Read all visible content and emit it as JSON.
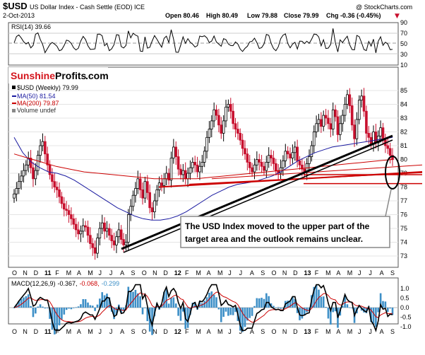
{
  "header": {
    "symbol": "$USD",
    "name": "US Dollar Index - Cash Settle (EOD) ICE",
    "date": "2-Oct-2013",
    "open": "Open 80.46",
    "high": "High 80.49",
    "low": "Low 79.88",
    "close": "Close 79.99",
    "chg": "Chg -0.36 (-0.45%)",
    "chg_arrow": "▼",
    "brand": "@ StockCharts.com"
  },
  "logo": {
    "part1": "Sunshine",
    "part2": "Profits",
    "part3": ".com"
  },
  "rsi": {
    "label": "RSI(14) 39.66",
    "ticks": [
      "90",
      "70",
      "50",
      "30",
      "10"
    ]
  },
  "price": {
    "legend": [
      "$USD (Weekly) 79.99",
      "MA(50) 81.54",
      "MA(200) 79.87",
      "Volume undef"
    ],
    "yticks": [
      "85",
      "84",
      "83",
      "82",
      "81",
      "80",
      "79",
      "78",
      "77",
      "76",
      "75",
      "74",
      "73"
    ]
  },
  "annotation": {
    "line1": "The USD Index moved to the upper part of the",
    "line2": "target area and the outlook remains unclear."
  },
  "macd": {
    "label_name": "MACD(12,26,9)",
    "label_v1": "-0.367,",
    "label_v2": "-0.068,",
    "label_v3": "-0.299",
    "yticks": [
      "1.0",
      "0.5",
      "0.0",
      "-0.5",
      "-1.0"
    ]
  },
  "xaxis": [
    "O",
    "N",
    "D",
    "11",
    "F",
    "M",
    "A",
    "M",
    "J",
    "J",
    "A",
    "S",
    "O",
    "N",
    "D",
    "12",
    "F",
    "M",
    "A",
    "M",
    "J",
    "J",
    "A",
    "S",
    "O",
    "N",
    "D",
    "13",
    "F",
    "M",
    "A",
    "M",
    "J",
    "J",
    "A",
    "S"
  ],
  "colors": {
    "up": "#000000",
    "down": "#c8102e",
    "ma50": "#1a1aa0",
    "ma200": "#cc0000",
    "hist": "#3d8fc7",
    "support": "#cc0000"
  },
  "chart_data": {
    "type": "candlestick",
    "title": "$USD US Dollar Index - Cash Settle (EOD) ICE",
    "timeframe": "Weekly",
    "x_range": [
      "Oct 2010",
      "Oct 2013"
    ],
    "y_range": [
      72.5,
      85.6
    ],
    "weekly_close": [
      77.5,
      77.9,
      78.4,
      78.8,
      79.2,
      79.6,
      80.1,
      79.4,
      78.6,
      79.2,
      80.3,
      81.0,
      81.3,
      80.4,
      79.6,
      78.9,
      78.4,
      78.0,
      77.8,
      77.3,
      76.8,
      76.4,
      76.3,
      76.0,
      75.7,
      75.3,
      74.9,
      74.6,
      74.8,
      75.2,
      75.1,
      74.5,
      73.9,
      73.6,
      73.2,
      74.3,
      75.0,
      75.4,
      74.8,
      75.0,
      74.5,
      74.1,
      73.8,
      74.4,
      74.9,
      74.2,
      73.8,
      74.0,
      76.0,
      76.6,
      77.4,
      77.9,
      78.6,
      77.8,
      77.2,
      78.4,
      77.6,
      76.5,
      76.2,
      77.0,
      77.8,
      78.3,
      78.1,
      78.6,
      79.0,
      78.5,
      80.1,
      80.9,
      80.2,
      79.3,
      78.9,
      79.2,
      78.6,
      79.0,
      79.4,
      79.8,
      79.6,
      79.1,
      79.5,
      79.8,
      80.6,
      81.6,
      82.2,
      82.8,
      83.6,
      83.2,
      82.5,
      81.9,
      82.8,
      83.8,
      84.0,
      83.5,
      82.6,
      82.2,
      81.9,
      81.4,
      80.8,
      80.4,
      79.8,
      79.4,
      79.1,
      79.6,
      80.0,
      79.8,
      79.5,
      79.2,
      79.8,
      80.3,
      80.1,
      79.7,
      79.2,
      79.0,
      79.4,
      79.9,
      80.6,
      80.4,
      80.1,
      80.5,
      80.9,
      79.9,
      79.6,
      79.3,
      79.1,
      79.7,
      80.2,
      81.0,
      82.0,
      82.6,
      82.9,
      82.4,
      83.2,
      83.0,
      82.6,
      82.2,
      83.6,
      83.1,
      81.8,
      82.6,
      83.2,
      84.0,
      84.7,
      83.9,
      82.5,
      81.5,
      82.9,
      84.3,
      84.6,
      83.5,
      81.9,
      81.6,
      81.1,
      82.0,
      81.2,
      81.7,
      82.3,
      81.4,
      81.0,
      80.8,
      80.3,
      79.99
    ],
    "ma50": [
      81.6,
      80.5,
      79.8,
      79.4,
      79.1,
      79.0,
      78.8,
      78.5,
      78.1,
      77.7,
      77.3,
      76.9,
      76.5,
      76.2,
      75.9,
      75.7,
      75.6,
      75.6,
      75.7,
      75.9,
      76.2,
      76.6,
      77.0,
      77.4,
      77.7,
      78.0,
      78.2,
      78.3,
      78.4,
      78.6,
      78.8,
      79.1,
      79.5,
      79.9,
      80.2,
      80.5,
      80.7,
      80.9,
      81.0,
      81.1,
      81.2,
      81.3,
      81.4,
      81.5,
      81.6
    ],
    "ma200": [
      80.4,
      80.1,
      79.8,
      79.5,
      79.3,
      79.1,
      79.0,
      78.9,
      78.8,
      78.7,
      78.6,
      78.6,
      78.6,
      78.6,
      78.7,
      78.8,
      78.9,
      79.0,
      79.1,
      79.2,
      79.3,
      79.4,
      79.5,
      79.6,
      79.7,
      79.8,
      79.9,
      80.0
    ],
    "trendlines": [
      {
        "name": "rising support",
        "from": [
          "Aug 2011",
          73.6
        ],
        "to": [
          "Sep 2013",
          81.6
        ]
      },
      {
        "name": "support lines",
        "values": [
          78.0,
          78.2,
          78.8,
          79.0
        ]
      }
    ],
    "rsi": {
      "label": "RSI(14)",
      "last": 39.66,
      "range": [
        10,
        90
      ]
    },
    "macd": {
      "params": "12,26,9",
      "macd": -0.367,
      "histogram": -0.068,
      "signal": -0.299,
      "range": [
        -1.0,
        1.0
      ]
    }
  }
}
